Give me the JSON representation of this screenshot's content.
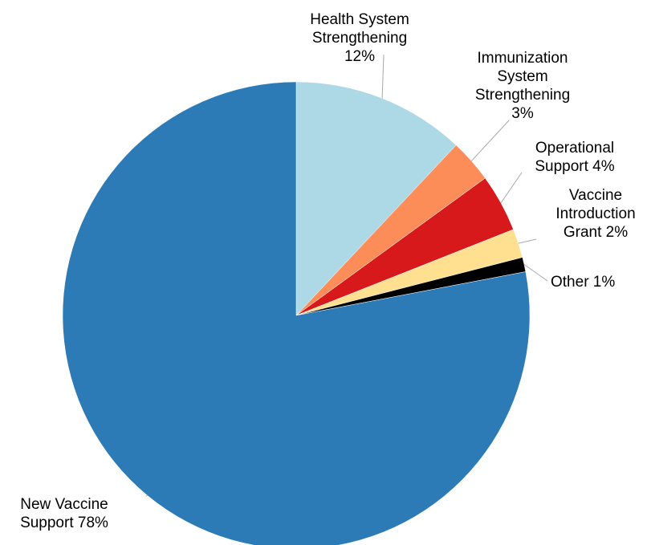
{
  "chart_data": {
    "type": "pie",
    "slices": [
      {
        "label_lines": [
          "Health System",
          "Strengthening",
          "12%"
        ],
        "value": 12,
        "color": "#add8e6"
      },
      {
        "label_lines": [
          "Immunization",
          "System",
          "Strengthening",
          "3%"
        ],
        "value": 3,
        "color": "#fc8d59"
      },
      {
        "label_lines": [
          "Operational",
          "Support 4%"
        ],
        "value": 4,
        "color": "#d7191c"
      },
      {
        "label_lines": [
          "Vaccine",
          "Introduction",
          "Grant 2%"
        ],
        "value": 2,
        "color": "#fee090"
      },
      {
        "label_lines": [
          "Other 1%"
        ],
        "value": 1,
        "color": "#000000"
      },
      {
        "label_lines": [
          "New Vaccine",
          "Support 78%"
        ],
        "value": 78,
        "color": "#2c7bb6"
      }
    ],
    "start": "12 o'clock",
    "direction": "clockwise"
  }
}
